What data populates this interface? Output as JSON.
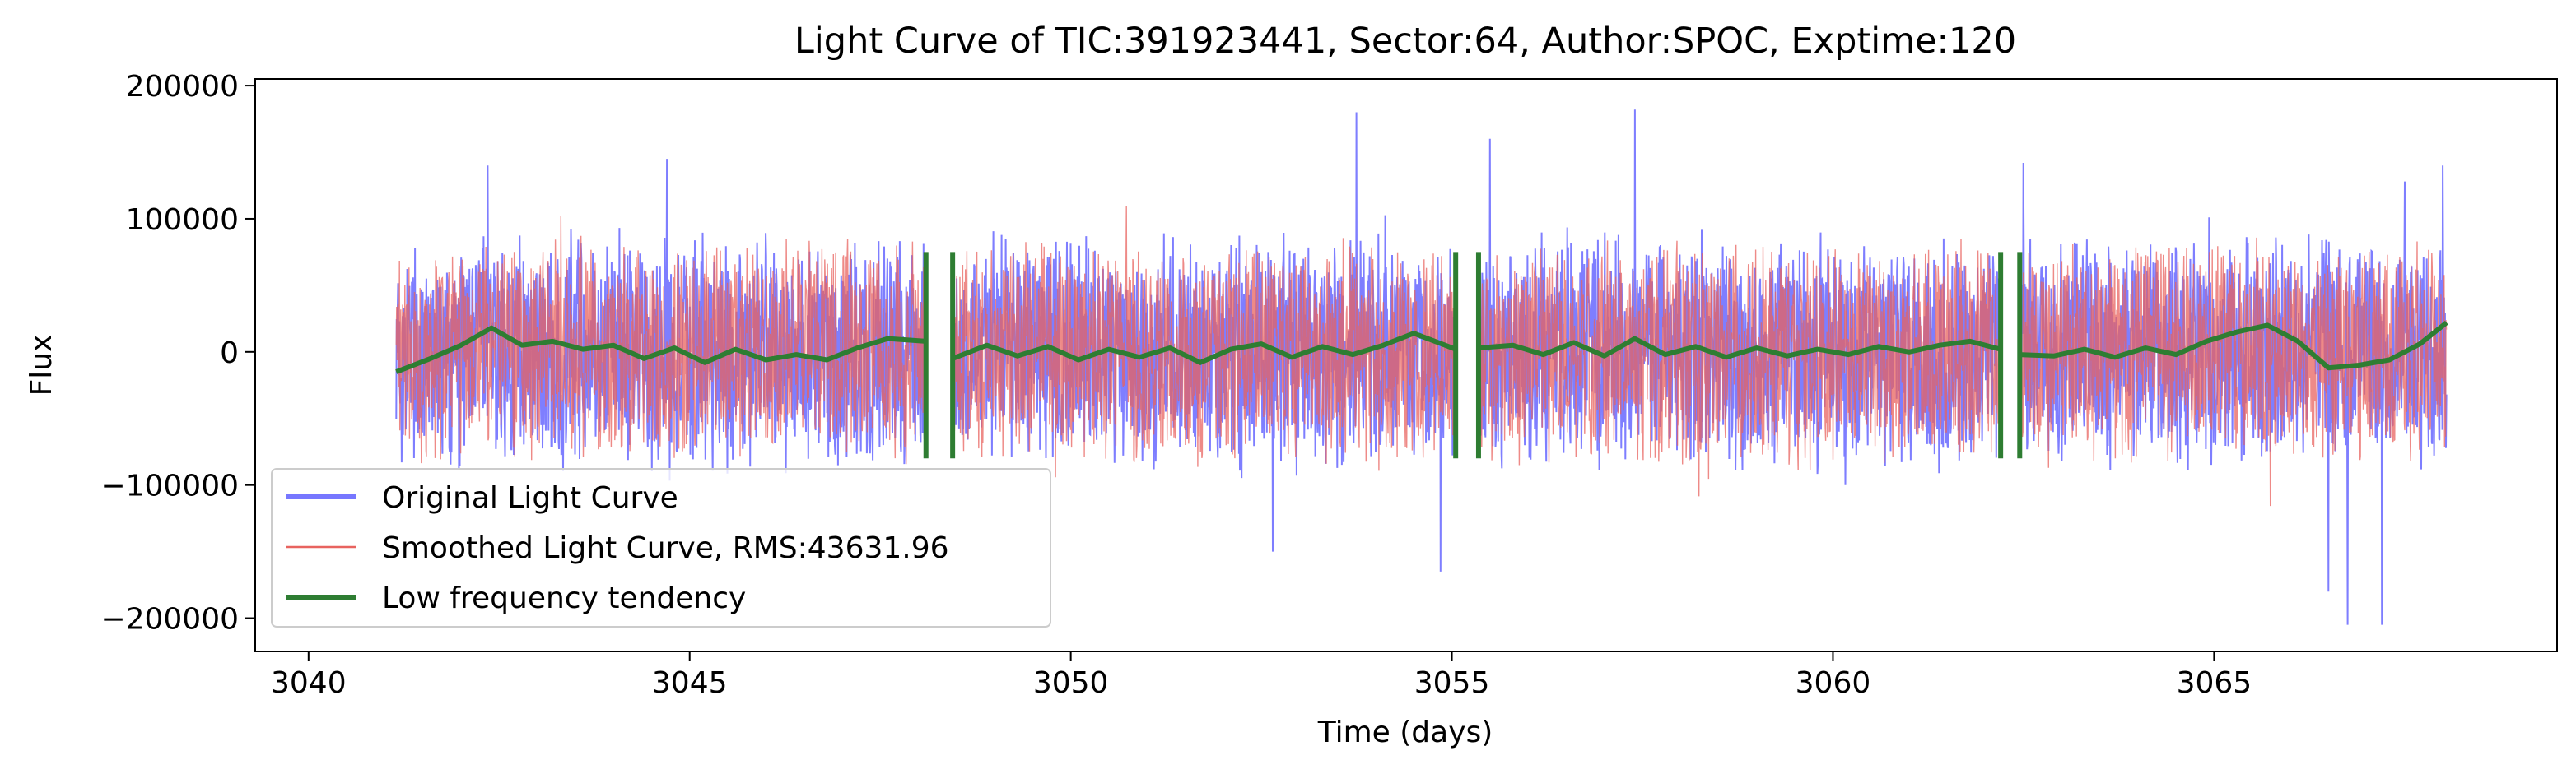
{
  "chart_data": {
    "type": "line",
    "title": "Light Curve of TIC:391923441, Sector:64, Author:SPOC, Exptime:120",
    "xlabel": "Time (days)",
    "ylabel": "Flux",
    "xlim": [
      3039.3,
      3069.5
    ],
    "ylim": [
      -225000,
      205000
    ],
    "xticks": [
      3040,
      3045,
      3050,
      3055,
      3060,
      3065
    ],
    "xtick_labels": [
      "3040",
      "3045",
      "3050",
      "3055",
      "3060",
      "3065"
    ],
    "yticks": [
      -200000,
      -100000,
      0,
      100000,
      200000
    ],
    "ytick_labels": [
      "−200000",
      "−100000",
      "0",
      "100000",
      "200000"
    ],
    "grid": false,
    "legend_position": "lower-left",
    "segments": [
      [
        3041.15,
        3048.1
      ],
      [
        3048.45,
        3055.05
      ],
      [
        3055.35,
        3062.2
      ],
      [
        3062.45,
        3068.05
      ]
    ],
    "series": [
      {
        "name": "Original Light Curve",
        "color": "#7777ff",
        "amplitude": 95000,
        "peaks": [
          {
            "x": 3042.35,
            "y": 140000
          },
          {
            "x": 3044.7,
            "y": 145000
          },
          {
            "x": 3053.75,
            "y": 180000
          },
          {
            "x": 3054.85,
            "y": -165000
          },
          {
            "x": 3055.5,
            "y": 160000
          },
          {
            "x": 3057.4,
            "y": 182000
          },
          {
            "x": 3052.65,
            "y": -150000
          },
          {
            "x": 3062.5,
            "y": 142000
          },
          {
            "x": 3066.5,
            "y": -180000
          },
          {
            "x": 3066.75,
            "y": -205000
          },
          {
            "x": 3067.2,
            "y": -205000
          },
          {
            "x": 3067.5,
            "y": 128000
          },
          {
            "x": 3068.0,
            "y": 140000
          }
        ]
      },
      {
        "name": "Smoothed Light Curve, RMS:43631.96",
        "color": "#e8635f",
        "amplitude": 90000
      },
      {
        "name": "Low frequency tendency",
        "color": "#2e7d32",
        "points": [
          [
            3041.15,
            -15000
          ],
          [
            3041.6,
            -5000
          ],
          [
            3042.0,
            5000
          ],
          [
            3042.4,
            18000
          ],
          [
            3042.8,
            5000
          ],
          [
            3043.2,
            8000
          ],
          [
            3043.6,
            2000
          ],
          [
            3044.0,
            5000
          ],
          [
            3044.4,
            -5000
          ],
          [
            3044.8,
            3000
          ],
          [
            3045.2,
            -8000
          ],
          [
            3045.6,
            2000
          ],
          [
            3046.0,
            -6000
          ],
          [
            3046.4,
            -2000
          ],
          [
            3046.8,
            -6000
          ],
          [
            3047.2,
            3000
          ],
          [
            3047.6,
            10000
          ],
          [
            3048.1,
            8000
          ],
          [
            3048.45,
            -5000
          ],
          [
            3048.9,
            5000
          ],
          [
            3049.3,
            -3000
          ],
          [
            3049.7,
            4000
          ],
          [
            3050.1,
            -6000
          ],
          [
            3050.5,
            2000
          ],
          [
            3050.9,
            -4000
          ],
          [
            3051.3,
            3000
          ],
          [
            3051.7,
            -8000
          ],
          [
            3052.1,
            2000
          ],
          [
            3052.5,
            6000
          ],
          [
            3052.9,
            -4000
          ],
          [
            3053.3,
            4000
          ],
          [
            3053.7,
            -2000
          ],
          [
            3054.1,
            5000
          ],
          [
            3054.5,
            14000
          ],
          [
            3055.05,
            2000
          ],
          [
            3055.35,
            3000
          ],
          [
            3055.8,
            5000
          ],
          [
            3056.2,
            -2000
          ],
          [
            3056.6,
            7000
          ],
          [
            3057.0,
            -3000
          ],
          [
            3057.4,
            10000
          ],
          [
            3057.8,
            -2000
          ],
          [
            3058.2,
            4000
          ],
          [
            3058.6,
            -4000
          ],
          [
            3059.0,
            3000
          ],
          [
            3059.4,
            -3000
          ],
          [
            3059.8,
            2000
          ],
          [
            3060.2,
            -2000
          ],
          [
            3060.6,
            4000
          ],
          [
            3061.0,
            0
          ],
          [
            3061.4,
            5000
          ],
          [
            3061.8,
            8000
          ],
          [
            3062.2,
            2000
          ],
          [
            3062.45,
            -2000
          ],
          [
            3062.9,
            -3000
          ],
          [
            3063.3,
            2000
          ],
          [
            3063.7,
            -4000
          ],
          [
            3064.1,
            3000
          ],
          [
            3064.5,
            -2000
          ],
          [
            3064.9,
            8000
          ],
          [
            3065.3,
            15000
          ],
          [
            3065.7,
            20000
          ],
          [
            3066.1,
            8000
          ],
          [
            3066.5,
            -12000
          ],
          [
            3066.9,
            -10000
          ],
          [
            3067.3,
            -6000
          ],
          [
            3067.7,
            6000
          ],
          [
            3068.05,
            22000
          ]
        ]
      }
    ]
  }
}
